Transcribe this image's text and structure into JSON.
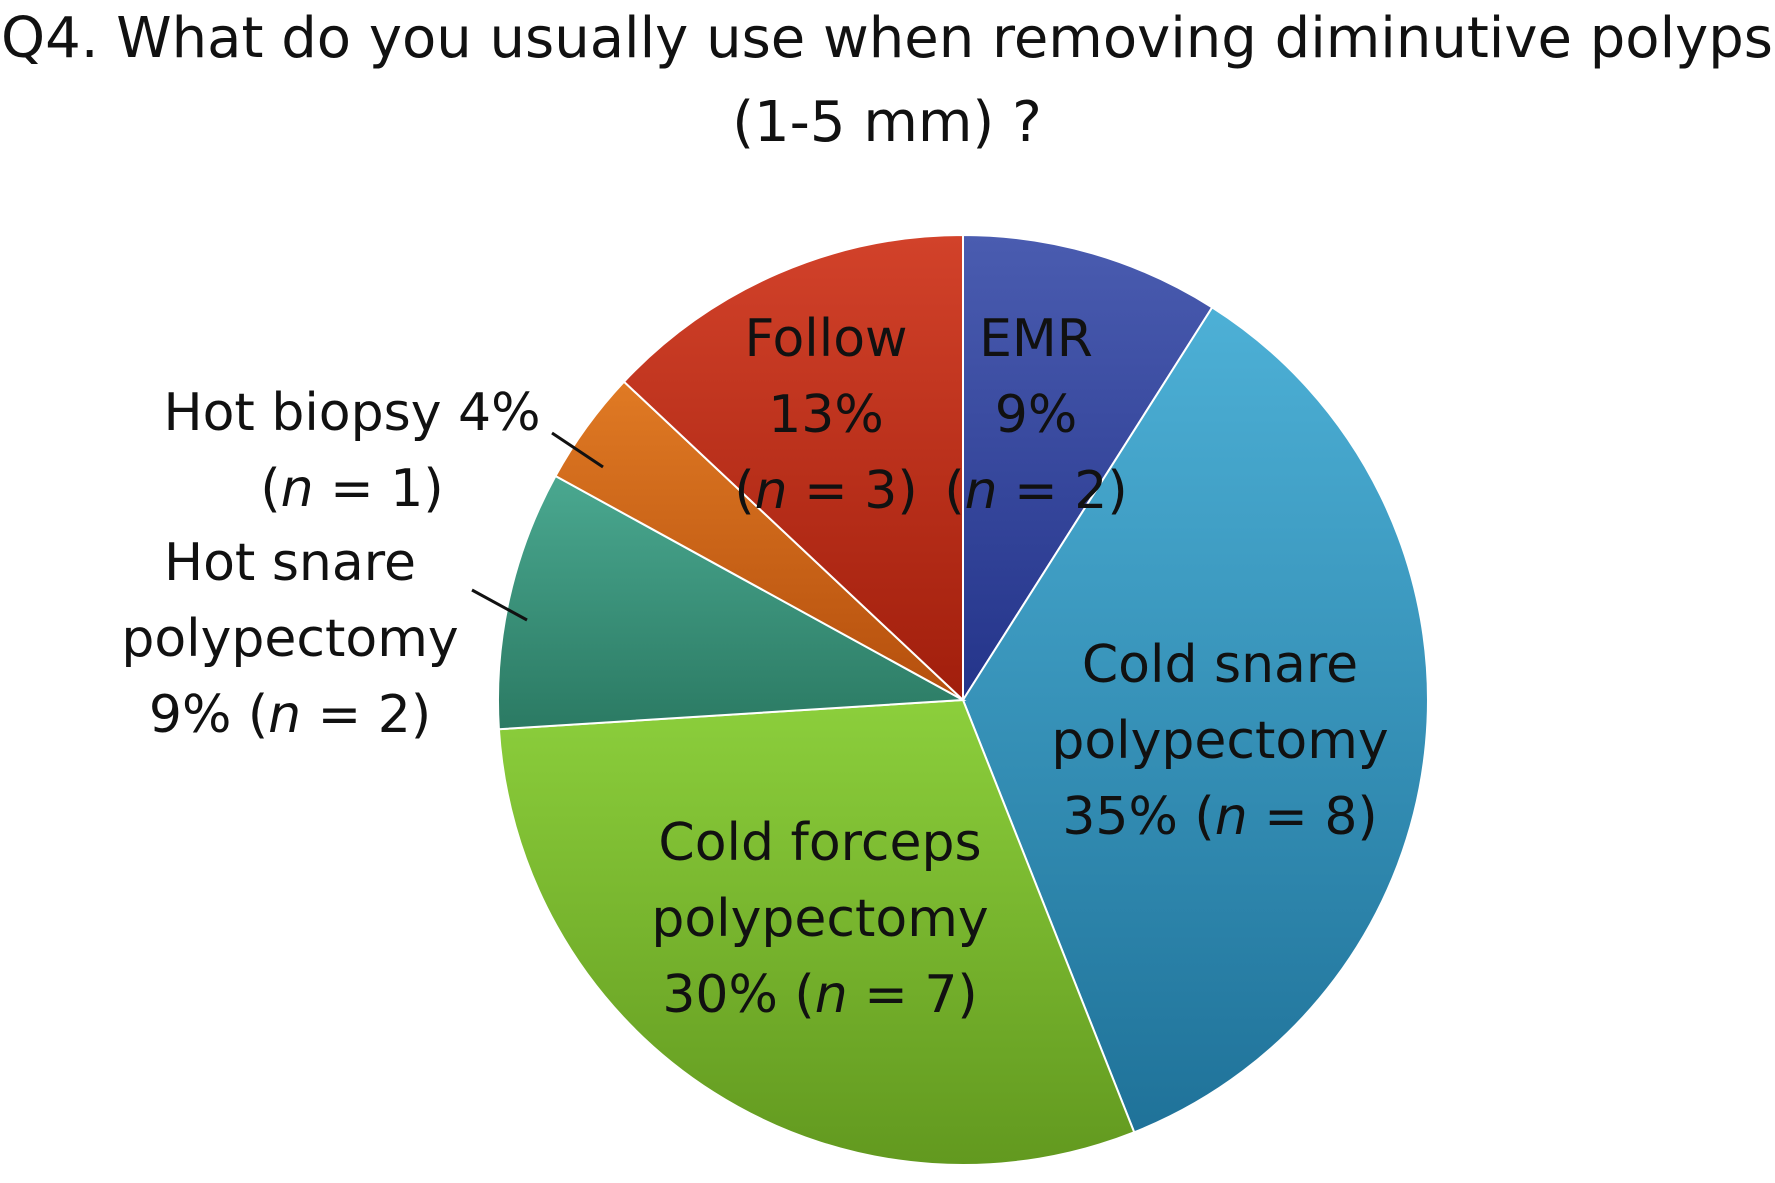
{
  "chart_data": {
    "type": "pie",
    "title_lines": [
      "Q4. What do you usually use when removing diminutive polyps",
      "(1-5 mm) ?"
    ],
    "start_angle_deg": 0,
    "direction": "clockwise",
    "slices": [
      {
        "key": "emr",
        "label": "EMR",
        "percent": 9,
        "n": 2,
        "percent_text": "9%",
        "n_text": "2",
        "label_lines": [
          [
            {
              "text": "EMR"
            }
          ],
          [
            {
              "text": "9%"
            }
          ],
          [
            {
              "text": "("
            },
            {
              "text": "n",
              "italic": true
            },
            {
              "text": " = 2)"
            }
          ]
        ],
        "colors": [
          "#4a5cb0",
          "#24348a"
        ]
      },
      {
        "key": "cold-snare",
        "label": "Cold snare polypectomy",
        "percent": 35,
        "n": 8,
        "percent_text": "35%",
        "n_text": "8",
        "label_lines": [
          [
            {
              "text": "Cold snare"
            }
          ],
          [
            {
              "text": "polypectomy"
            }
          ],
          [
            {
              "text": "35%  ("
            },
            {
              "text": "n",
              "italic": true
            },
            {
              "text": " = 8)"
            }
          ]
        ],
        "colors": [
          "#4db0d6",
          "#1f7299"
        ]
      },
      {
        "key": "cold-forceps",
        "label": "Cold forceps polypectomy",
        "percent": 30,
        "n": 7,
        "percent_text": "30%",
        "n_text": "7",
        "label_lines": [
          [
            {
              "text": "Cold forceps"
            }
          ],
          [
            {
              "text": "polypectomy"
            }
          ],
          [
            {
              "text": "30%  ("
            },
            {
              "text": "n",
              "italic": true
            },
            {
              "text": " = 7)"
            }
          ]
        ],
        "colors": [
          "#8ccf3c",
          "#62991f"
        ]
      },
      {
        "key": "hot-snare",
        "label": "Hot snare polypectomy",
        "percent": 9,
        "n": 2,
        "percent_text": "9%",
        "n_text": "2",
        "label_lines": [
          [
            {
              "text": "Hot snare"
            }
          ],
          [
            {
              "text": "polypectomy"
            }
          ],
          [
            {
              "text": "9%  ("
            },
            {
              "text": "n",
              "italic": true
            },
            {
              "text": " = 2)"
            }
          ]
        ],
        "colors": [
          "#4aa890",
          "#2b7a63"
        ]
      },
      {
        "key": "hot-biopsy",
        "label": "Hot biopsy",
        "percent": 4,
        "n": 1,
        "percent_text": "4%",
        "n_text": "1",
        "label_lines": [
          [
            {
              "text": "Hot biopsy 4%"
            }
          ],
          [
            {
              "text": "("
            },
            {
              "text": "n",
              "italic": true
            },
            {
              "text": " = 1)"
            }
          ]
        ],
        "colors": [
          "#e07a24",
          "#b54f0d"
        ]
      },
      {
        "key": "follow",
        "label": "Follow",
        "percent": 13,
        "n": 3,
        "percent_text": "13%",
        "n_text": "3",
        "label_lines": [
          [
            {
              "text": "Follow"
            }
          ],
          [
            {
              "text": "13%"
            }
          ],
          [
            {
              "text": "("
            },
            {
              "text": "n",
              "italic": true
            },
            {
              "text": " = 3)"
            }
          ]
        ],
        "colors": [
          "#d2422a",
          "#a11e0c"
        ]
      }
    ]
  }
}
